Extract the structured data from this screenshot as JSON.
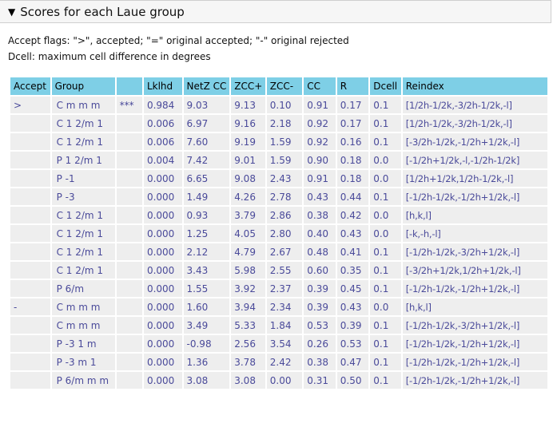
{
  "section": {
    "toggle_icon": "triangle-down-icon",
    "title": "Scores for each Laue group"
  },
  "legend": {
    "flags_line": "Accept flags: \">\", accepted; \"=\" original accepted; \"-\" original rejected",
    "dcell_line": "Dcell: maximum cell difference in degrees"
  },
  "table": {
    "headers": {
      "accept": "Accept",
      "group": "Group",
      "mark": "",
      "lklhd": "Lklhd",
      "netzcc": "NetZ CC",
      "zccplus": "ZCC+",
      "zccminus": "ZCC-",
      "cc": "CC",
      "r": "R",
      "dcell": "Dcell",
      "reindex": "Reindex"
    },
    "rows": [
      {
        "accept": ">",
        "group": "C m m m",
        "mark": "***",
        "lklhd": "0.984",
        "netzcc": "9.03",
        "zccplus": "9.13",
        "zccminus": "0.10",
        "cc": "0.91",
        "r": "0.17",
        "dcell": "0.1",
        "reindex": "[1/2h-1/2k,-3/2h-1/2k,-l]"
      },
      {
        "accept": "",
        "group": "C 1 2/m 1",
        "mark": "",
        "lklhd": "0.006",
        "netzcc": "6.97",
        "zccplus": "9.16",
        "zccminus": "2.18",
        "cc": "0.92",
        "r": "0.17",
        "dcell": "0.1",
        "reindex": "[1/2h-1/2k,-3/2h-1/2k,-l]"
      },
      {
        "accept": "",
        "group": "C 1 2/m 1",
        "mark": "",
        "lklhd": "0.006",
        "netzcc": "7.60",
        "zccplus": "9.19",
        "zccminus": "1.59",
        "cc": "0.92",
        "r": "0.16",
        "dcell": "0.1",
        "reindex": "[-3/2h-1/2k,-1/2h+1/2k,-l]"
      },
      {
        "accept": "",
        "group": "P 1 2/m 1",
        "mark": "",
        "lklhd": "0.004",
        "netzcc": "7.42",
        "zccplus": "9.01",
        "zccminus": "1.59",
        "cc": "0.90",
        "r": "0.18",
        "dcell": "0.0",
        "reindex": "[-1/2h+1/2k,-l,-1/2h-1/2k]"
      },
      {
        "accept": "",
        "group": "P -1",
        "mark": "",
        "lklhd": "0.000",
        "netzcc": "6.65",
        "zccplus": "9.08",
        "zccminus": "2.43",
        "cc": "0.91",
        "r": "0.18",
        "dcell": "0.0",
        "reindex": "[1/2h+1/2k,1/2h-1/2k,-l]"
      },
      {
        "accept": "",
        "group": "P -3",
        "mark": "",
        "lklhd": "0.000",
        "netzcc": "1.49",
        "zccplus": "4.26",
        "zccminus": "2.78",
        "cc": "0.43",
        "r": "0.44",
        "dcell": "0.1",
        "reindex": "[-1/2h-1/2k,-1/2h+1/2k,-l]"
      },
      {
        "accept": "",
        "group": "C 1 2/m 1",
        "mark": "",
        "lklhd": "0.000",
        "netzcc": "0.93",
        "zccplus": "3.79",
        "zccminus": "2.86",
        "cc": "0.38",
        "r": "0.42",
        "dcell": "0.0",
        "reindex": "[h,k,l]"
      },
      {
        "accept": "",
        "group": "C 1 2/m 1",
        "mark": "",
        "lklhd": "0.000",
        "netzcc": "1.25",
        "zccplus": "4.05",
        "zccminus": "2.80",
        "cc": "0.40",
        "r": "0.43",
        "dcell": "0.0",
        "reindex": "[-k,-h,-l]"
      },
      {
        "accept": "",
        "group": "C 1 2/m 1",
        "mark": "",
        "lklhd": "0.000",
        "netzcc": "2.12",
        "zccplus": "4.79",
        "zccminus": "2.67",
        "cc": "0.48",
        "r": "0.41",
        "dcell": "0.1",
        "reindex": "[-1/2h-1/2k,-3/2h+1/2k,-l]"
      },
      {
        "accept": "",
        "group": "C 1 2/m 1",
        "mark": "",
        "lklhd": "0.000",
        "netzcc": "3.43",
        "zccplus": "5.98",
        "zccminus": "2.55",
        "cc": "0.60",
        "r": "0.35",
        "dcell": "0.1",
        "reindex": "[-3/2h+1/2k,1/2h+1/2k,-l]"
      },
      {
        "accept": "",
        "group": "P 6/m",
        "mark": "",
        "lklhd": "0.000",
        "netzcc": "1.55",
        "zccplus": "3.92",
        "zccminus": "2.37",
        "cc": "0.39",
        "r": "0.45",
        "dcell": "0.1",
        "reindex": "[-1/2h-1/2k,-1/2h+1/2k,-l]"
      },
      {
        "accept": "-",
        "group": "C m m m",
        "mark": "",
        "lklhd": "0.000",
        "netzcc": "1.60",
        "zccplus": "3.94",
        "zccminus": "2.34",
        "cc": "0.39",
        "r": "0.43",
        "dcell": "0.0",
        "reindex": "[h,k,l]"
      },
      {
        "accept": "",
        "group": "C m m m",
        "mark": "",
        "lklhd": "0.000",
        "netzcc": "3.49",
        "zccplus": "5.33",
        "zccminus": "1.84",
        "cc": "0.53",
        "r": "0.39",
        "dcell": "0.1",
        "reindex": "[-1/2h-1/2k,-3/2h+1/2k,-l]"
      },
      {
        "accept": "",
        "group": "P -3 1 m",
        "mark": "",
        "lklhd": "0.000",
        "netzcc": "-0.98",
        "zccplus": "2.56",
        "zccminus": "3.54",
        "cc": "0.26",
        "r": "0.53",
        "dcell": "0.1",
        "reindex": "[-1/2h-1/2k,-1/2h+1/2k,-l]"
      },
      {
        "accept": "",
        "group": "P -3 m 1",
        "mark": "",
        "lklhd": "0.000",
        "netzcc": "1.36",
        "zccplus": "3.78",
        "zccminus": "2.42",
        "cc": "0.38",
        "r": "0.47",
        "dcell": "0.1",
        "reindex": "[-1/2h-1/2k,-1/2h+1/2k,-l]"
      },
      {
        "accept": "",
        "group": "P 6/m m m",
        "mark": "",
        "lklhd": "0.000",
        "netzcc": "3.08",
        "zccplus": "3.08",
        "zccminus": "0.00",
        "cc": "0.31",
        "r": "0.50",
        "dcell": "0.1",
        "reindex": "[-1/2h-1/2k,-1/2h+1/2k,-l]"
      }
    ]
  }
}
